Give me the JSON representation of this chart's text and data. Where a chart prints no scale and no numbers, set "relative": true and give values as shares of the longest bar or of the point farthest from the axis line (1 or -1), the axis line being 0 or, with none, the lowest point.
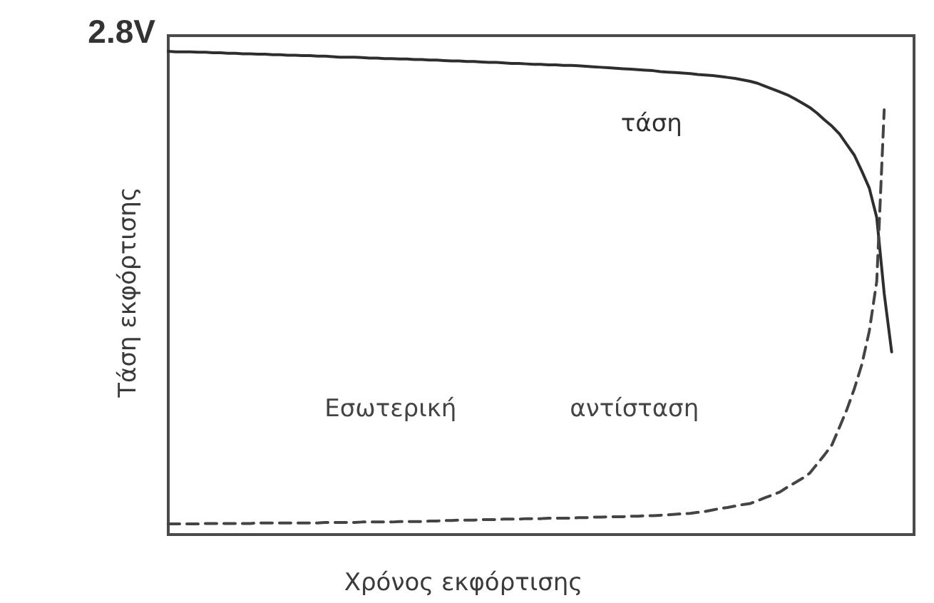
{
  "chart_data": {
    "type": "line",
    "xlabel": "Χρόνος εκφόρτισης",
    "ylabel": "Τάση εκφόρτισης",
    "annotations": [
      "2.8V"
    ],
    "relative": true,
    "categories": [
      null,
      null,
      null,
      null,
      null,
      null,
      null,
      null,
      null,
      null,
      null,
      null,
      null,
      null,
      null,
      null,
      null,
      null,
      null,
      null,
      null,
      null,
      null,
      null,
      null,
      null,
      null,
      null,
      null,
      null,
      null,
      null,
      null,
      null,
      null,
      null,
      null,
      null,
      null,
      null,
      null,
      null,
      null,
      null,
      null,
      null,
      null,
      null,
      null,
      null,
      null,
      null,
      null,
      null,
      null,
      null,
      null,
      null,
      null,
      null,
      null,
      null,
      null,
      null,
      null,
      null,
      null,
      null,
      null,
      null,
      null,
      null,
      null,
      null,
      null,
      null,
      null,
      null,
      null,
      null,
      null,
      null,
      null,
      null,
      null,
      null,
      null,
      null,
      null,
      null,
      null,
      null,
      null,
      null,
      null,
      null,
      null,
      null,
      null,
      null,
      null
    ],
    "series": [
      {
        "name": "τάση",
        "color": "#2e2e2e",
        "line_style": "solid",
        "values": [
          1,
          0.999,
          0.999,
          0.999,
          0.998,
          0.998,
          0.997,
          0.997,
          0.996,
          0.996,
          0.995,
          0.995,
          0.994,
          0.994,
          0.993,
          0.993,
          0.992,
          0.992,
          0.991,
          0.991,
          0.99,
          0.99,
          0.989,
          0.988,
          0.988,
          0.988,
          0.987,
          0.986,
          0.986,
          0.985,
          0.985,
          0.984,
          0.984,
          0.983,
          0.983,
          0.982,
          0.982,
          0.981,
          0.98,
          0.98,
          0.979,
          0.979,
          0.978,
          0.977,
          0.977,
          0.976,
          0.975,
          0.975,
          0.974,
          0.973,
          0.973,
          0.972,
          0.972,
          0.971,
          0.971,
          0.97,
          0.969,
          0.968,
          0.967,
          0.966,
          0.965,
          0.964,
          0.963,
          0.962,
          0.961,
          0.96,
          0.958,
          0.957,
          0.956,
          0.955,
          0.954,
          0.952,
          0.951,
          0.95,
          0.948,
          0.946,
          0.944,
          0.941,
          0.938,
          0.934,
          0.928,
          0.922,
          0.916,
          0.91,
          0.902,
          0.893,
          0.884,
          0.872,
          0.858,
          0.845,
          0.829,
          0.807,
          0.785,
          0.752,
          0.717,
          0.656,
          0.499,
          0.378,
          null,
          null,
          null
        ]
      },
      {
        "name": "Εσωτερική αντίσταση",
        "color": "#444444",
        "line_style": "dashed",
        "values": [
          0.022,
          0.022,
          0.022,
          0.022,
          0.022,
          0.023,
          0.023,
          0.023,
          0.023,
          0.023,
          0.023,
          0.023,
          0.024,
          0.024,
          0.024,
          0.024,
          0.024,
          0.024,
          0.024,
          0.024,
          0.024,
          0.025,
          0.025,
          0.025,
          0.025,
          0.025,
          0.026,
          0.026,
          0.026,
          0.026,
          0.026,
          0.027,
          0.027,
          0.027,
          0.027,
          0.028,
          0.028,
          0.029,
          0.029,
          0.03,
          0.03,
          0.03,
          0.031,
          0.031,
          0.031,
          0.032,
          0.032,
          0.032,
          0.033,
          0.033,
          0.033,
          0.034,
          0.034,
          0.034,
          0.034,
          0.035,
          0.035,
          0.036,
          0.036,
          0.037,
          0.037,
          0.037,
          0.038,
          0.038,
          0.039,
          0.039,
          0.04,
          0.041,
          0.042,
          0.043,
          0.044,
          0.046,
          0.048,
          0.051,
          0.054,
          0.056,
          0.059,
          0.062,
          0.064,
          0.07,
          0.076,
          0.082,
          0.088,
          0.098,
          0.107,
          0.116,
          0.127,
          0.146,
          0.165,
          0.186,
          0.222,
          0.259,
          0.302,
          0.352,
          0.421,
          0.524,
          0.879,
          null,
          null,
          null,
          null
        ]
      }
    ]
  }
}
